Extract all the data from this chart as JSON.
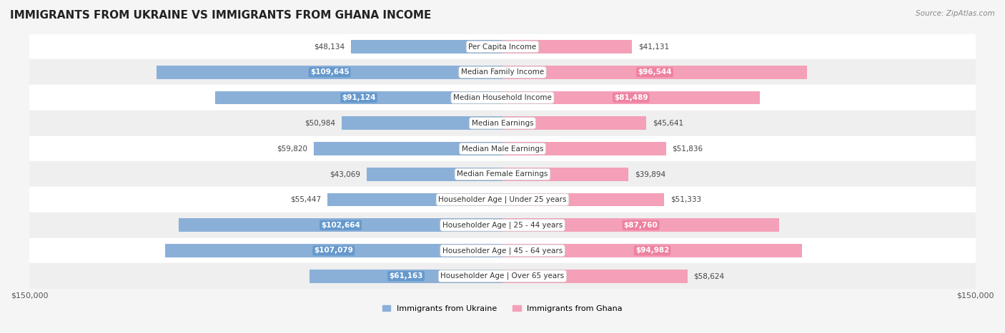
{
  "title": "IMMIGRANTS FROM UKRAINE VS IMMIGRANTS FROM GHANA INCOME",
  "source": "Source: ZipAtlas.com",
  "categories": [
    "Per Capita Income",
    "Median Family Income",
    "Median Household Income",
    "Median Earnings",
    "Median Male Earnings",
    "Median Female Earnings",
    "Householder Age | Under 25 years",
    "Householder Age | 25 - 44 years",
    "Householder Age | 45 - 64 years",
    "Householder Age | Over 65 years"
  ],
  "ukraine_values": [
    48134,
    109645,
    91124,
    50984,
    59820,
    43069,
    55447,
    102664,
    107079,
    61163
  ],
  "ghana_values": [
    41131,
    96544,
    81489,
    45641,
    51836,
    39894,
    51333,
    87760,
    94982,
    58624
  ],
  "ukraine_labels": [
    "$48,134",
    "$109,645",
    "$91,124",
    "$50,984",
    "$59,820",
    "$43,069",
    "$55,447",
    "$102,664",
    "$107,079",
    "$61,163"
  ],
  "ghana_labels": [
    "$41,131",
    "$96,544",
    "$81,489",
    "$45,641",
    "$51,836",
    "$39,894",
    "$51,333",
    "$87,760",
    "$94,982",
    "$58,624"
  ],
  "ukraine_color": "#8ab0d8",
  "ukraine_color_dark": "#6699cc",
  "ghana_color": "#f4a0b8",
  "ghana_color_dark": "#ee82a0",
  "max_value": 150000,
  "bg_color": "#f5f5f5",
  "row_bg_even": "#ffffff",
  "row_bg_odd": "#efefef",
  "legend_ukraine": "Immigrants from Ukraine",
  "legend_ghana": "Immigrants from Ghana"
}
